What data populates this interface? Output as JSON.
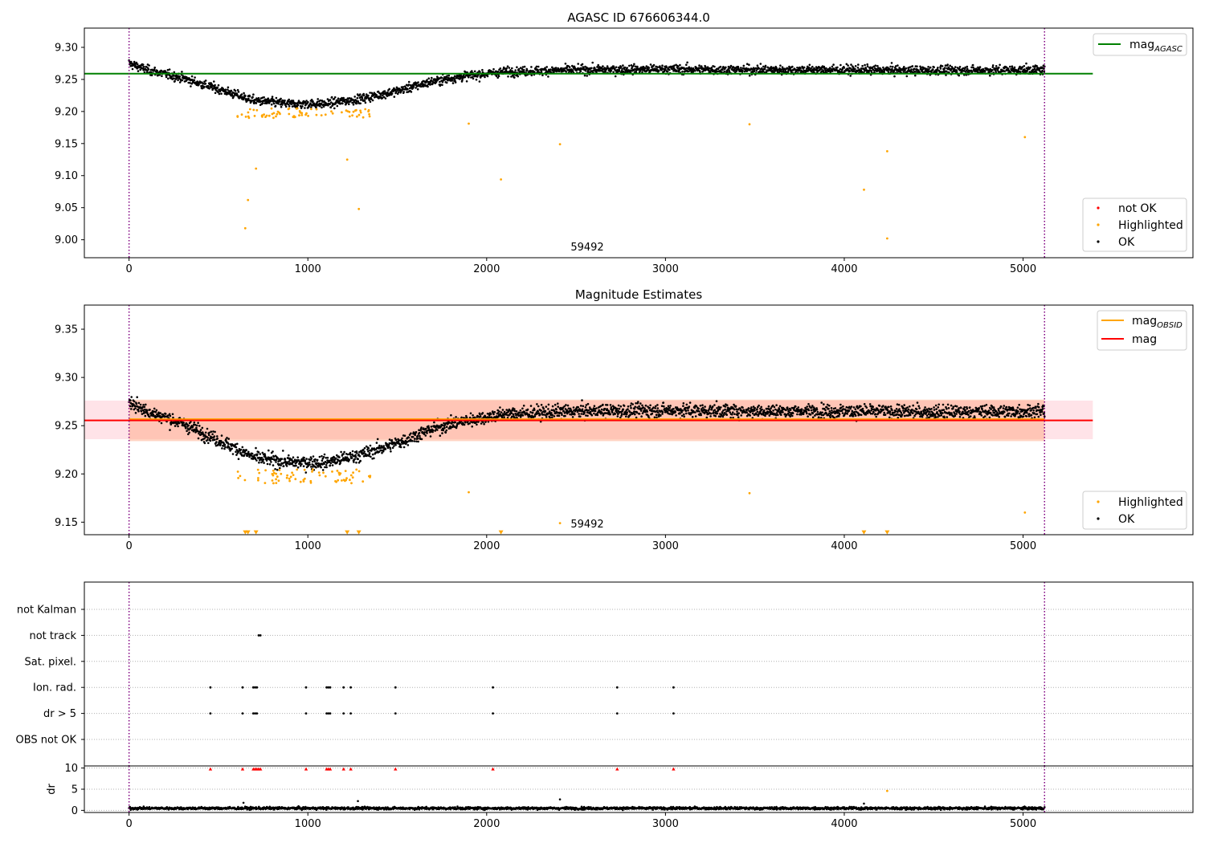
{
  "colors": {
    "ok": "#000000",
    "highlighted": "#ffa500",
    "not_ok": "#ff0000",
    "mag_agasc": "#008000",
    "mag_obsid": "#ffa500",
    "mag": "#ff0000",
    "band_mag": "#ffc0cb",
    "band_obsid": "#ffa07a",
    "obsid_boundary": "#800080",
    "grid": "#b0b0b0"
  },
  "chart_data": [
    {
      "type": "scatter",
      "title": "AGASC ID 676606344.0",
      "xlabel": "",
      "ylabel": "",
      "xlim": [
        -250,
        5950
      ],
      "ylim": [
        8.972,
        9.33
      ],
      "x_ticks": [
        0,
        1000,
        2000,
        3000,
        4000,
        5000
      ],
      "y_ticks": [
        9.0,
        9.05,
        9.1,
        9.15,
        9.2,
        9.25,
        9.3
      ],
      "y_tick_labels": [
        "9.00",
        "9.05",
        "9.10",
        "9.15",
        "9.20",
        "9.25",
        "9.30"
      ],
      "obsid_boundaries": [
        0,
        5120
      ],
      "annotation": {
        "text": "59492",
        "x": 2550,
        "y": 8.985
      },
      "hlines": [
        {
          "name": "mag_agasc",
          "y": 9.259,
          "x_range": [
            -250,
            5390
          ]
        }
      ],
      "legends": [
        {
          "position": "top-right",
          "entries": [
            {
              "label": "mag",
              "sub": "AGASC",
              "kind": "line",
              "color_key": "mag_agasc"
            }
          ]
        },
        {
          "position": "bottom-right",
          "entries": [
            {
              "label": "not OK",
              "kind": "marker",
              "color_key": "not_ok"
            },
            {
              "label": "Highlighted",
              "kind": "marker",
              "color_key": "highlighted"
            },
            {
              "label": "OK",
              "kind": "marker",
              "color_key": "ok"
            }
          ]
        }
      ],
      "series": [
        {
          "name": "OK",
          "color_key": "ok",
          "trend_x": [
            0,
            100,
            300,
            500,
            700,
            900,
            1100,
            1300,
            1500,
            1700,
            1900,
            2100,
            2500,
            3000,
            3500,
            4000,
            4500,
            5120
          ],
          "trend_y": [
            9.275,
            9.265,
            9.252,
            9.235,
            9.217,
            9.212,
            9.212,
            9.22,
            9.232,
            9.247,
            9.256,
            9.262,
            9.265,
            9.266,
            9.265,
            9.265,
            9.264,
            9.265
          ],
          "scatter": 0.009,
          "x_range": [
            0,
            5120
          ],
          "count": 2600
        },
        {
          "name": "Highlighted",
          "color_key": "highlighted",
          "cluster": {
            "x_range": [
              580,
              1350
            ],
            "y_range": [
              9.19,
              9.205
            ],
            "count": 70
          },
          "points": [
            [
              650,
              9.018
            ],
            [
              665,
              9.062
            ],
            [
              710,
              9.111
            ],
            [
              1220,
              9.125
            ],
            [
              1285,
              9.048
            ],
            [
              1900,
              9.181
            ],
            [
              2080,
              9.094
            ],
            [
              2410,
              9.149
            ],
            [
              3470,
              9.18
            ],
            [
              4110,
              9.078
            ],
            [
              4240,
              9.138
            ],
            [
              4240,
              9.002
            ],
            [
              5010,
              9.16
            ]
          ]
        }
      ]
    },
    {
      "type": "scatter",
      "title": "Magnitude Estimates",
      "xlabel": "",
      "ylabel": "",
      "xlim": [
        -250,
        5950
      ],
      "ylim": [
        9.137,
        9.375
      ],
      "x_ticks": [
        0,
        1000,
        2000,
        3000,
        4000,
        5000
      ],
      "y_ticks": [
        9.15,
        9.2,
        9.25,
        9.3,
        9.35
      ],
      "y_tick_labels": [
        "9.15",
        "9.20",
        "9.25",
        "9.30",
        "9.35"
      ],
      "obsid_boundaries": [
        0,
        5120
      ],
      "annotation": {
        "text": "59492",
        "x": 2550,
        "y": 9.145
      },
      "bands": [
        {
          "name": "mag band",
          "y": [
            9.236,
            9.276
          ],
          "x_range": [
            -250,
            5390
          ],
          "color_key": "band_mag"
        },
        {
          "name": "mag_obsid band",
          "y": [
            9.234,
            9.277
          ],
          "x_range": [
            0,
            5120
          ],
          "color_key": "band_obsid"
        }
      ],
      "hlines": [
        {
          "name": "mag_obsid",
          "y": 9.2555,
          "x_range": [
            0,
            5120
          ],
          "color_key": "mag_obsid"
        },
        {
          "name": "mag",
          "y": 9.2555,
          "x_range": [
            -250,
            5390
          ],
          "color_key": "mag"
        }
      ],
      "legends": [
        {
          "position": "top-right",
          "entries": [
            {
              "label": "mag",
              "sub": "OBSID",
              "kind": "line",
              "color_key": "mag_obsid"
            },
            {
              "label": "mag",
              "kind": "line",
              "color_key": "mag"
            }
          ]
        },
        {
          "position": "bottom-right",
          "entries": [
            {
              "label": "Highlighted",
              "kind": "marker",
              "color_key": "highlighted"
            },
            {
              "label": "OK",
              "kind": "marker",
              "color_key": "ok"
            }
          ]
        }
      ],
      "series": [
        {
          "name": "OK",
          "color_key": "ok",
          "trend_x": [
            0,
            100,
            300,
            500,
            700,
            900,
            1100,
            1300,
            1500,
            1700,
            1900,
            2100,
            2500,
            3000,
            3500,
            4000,
            4500,
            5120
          ],
          "trend_y": [
            9.275,
            9.265,
            9.252,
            9.235,
            9.217,
            9.212,
            9.212,
            9.22,
            9.232,
            9.247,
            9.256,
            9.262,
            9.265,
            9.266,
            9.265,
            9.265,
            9.264,
            9.265
          ],
          "scatter": 0.009,
          "x_range": [
            0,
            5120
          ],
          "count": 2600
        },
        {
          "name": "Highlighted",
          "color_key": "highlighted",
          "cluster": {
            "x_range": [
              580,
              1350
            ],
            "y_range": [
              9.19,
              9.205
            ],
            "count": 70
          },
          "points": [
            [
              1900,
              9.181
            ],
            [
              2410,
              9.149
            ],
            [
              3470,
              9.18
            ],
            [
              5010,
              9.16
            ]
          ]
        },
        {
          "name": "Highlighted (below range)",
          "color_key": "highlighted",
          "marker": "triangle-down",
          "points": [
            [
              650,
              9.139
            ],
            [
              665,
              9.139
            ],
            [
              710,
              9.139
            ],
            [
              1220,
              9.139
            ],
            [
              1285,
              9.139
            ],
            [
              2080,
              9.139
            ],
            [
              4110,
              9.139
            ],
            [
              4240,
              9.139
            ]
          ]
        }
      ]
    },
    {
      "type": "scatter",
      "title": "",
      "xlabel": "",
      "ylabel": "",
      "xlim": [
        -250,
        5950
      ],
      "categories": [
        "not Kalman",
        "not track",
        "Sat. pixel.",
        "Ion. rad.",
        "dr > 5",
        "OBS not OK"
      ],
      "obsid_boundaries": [
        0,
        5120
      ],
      "series": [
        {
          "name": "not track",
          "color_key": "ok",
          "x": [
            725,
            735
          ]
        },
        {
          "name": "Ion. rad.",
          "color_key": "ok",
          "x": [
            455,
            635,
            695,
            705,
            715,
            990,
            1105,
            1115,
            1125,
            1200,
            1240,
            1490,
            2035,
            2730,
            3045
          ]
        },
        {
          "name": "dr > 5",
          "color_key": "ok",
          "x": [
            455,
            635,
            695,
            705,
            715,
            990,
            1105,
            1115,
            1125,
            1200,
            1240,
            1490,
            2035,
            2730,
            3045
          ]
        }
      ]
    },
    {
      "type": "scatter",
      "title": "",
      "xlabel": "",
      "ylabel": "dr",
      "xlim": [
        -250,
        5950
      ],
      "ylim": [
        -0.5,
        10.5
      ],
      "x_ticks": [
        0,
        1000,
        2000,
        3000,
        4000,
        5000
      ],
      "y_ticks": [
        0,
        5,
        10
      ],
      "y_tick_labels": [
        "0",
        "5",
        "10"
      ],
      "obsid_boundaries": [
        0,
        5120
      ],
      "series": [
        {
          "name": "OK",
          "color_key": "ok",
          "level": 0.5,
          "scatter": 0.35,
          "x_range": [
            0,
            5120
          ],
          "count": 2200,
          "points": [
            [
              640,
              1.8
            ],
            [
              1280,
              2.2
            ],
            [
              2410,
              2.6
            ],
            [
              4110,
              1.6
            ]
          ]
        },
        {
          "name": "not OK (clipped)",
          "color_key": "not_ok",
          "marker": "triangle-up",
          "x": [
            455,
            635,
            695,
            705,
            715,
            725,
            735,
            990,
            1105,
            1115,
            1125,
            1200,
            1240,
            1490,
            2035,
            2730,
            3045
          ]
        },
        {
          "name": "Highlighted",
          "color_key": "highlighted",
          "points": [
            [
              4240,
              4.6
            ]
          ]
        }
      ]
    }
  ]
}
